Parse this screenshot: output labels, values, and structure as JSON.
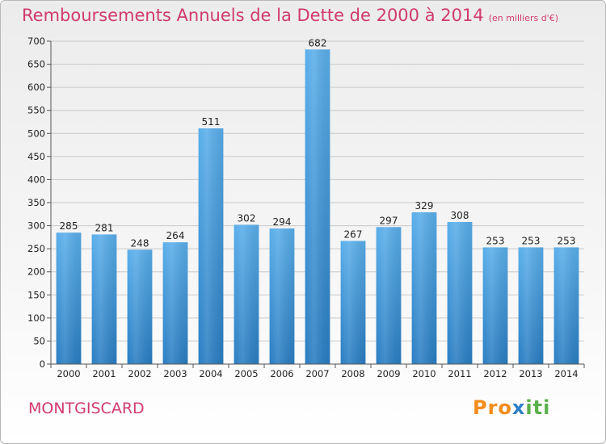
{
  "title": "Remboursements Annuels de la Dette de 2000 à 2014",
  "unit": "(en milliers d'€)",
  "commune": "MONTGISCARD",
  "logo": {
    "p1": "Pro",
    "p2": "x",
    "p3": "iti"
  },
  "colors": {
    "bar_top": "#5aaeea",
    "bar_bottom": "#2a7dc2",
    "title": "#d03a6e",
    "grid": "#c9c9c9"
  },
  "chart_data": {
    "type": "bar",
    "title": "Remboursements Annuels de la Dette de 2000 à 2014",
    "xlabel": "",
    "ylabel": "",
    "categories": [
      "2000",
      "2001",
      "2002",
      "2003",
      "2004",
      "2005",
      "2006",
      "2007",
      "2008",
      "2009",
      "2010",
      "2011",
      "2012",
      "2013",
      "2014"
    ],
    "values": [
      285,
      281,
      248,
      264,
      511,
      302,
      294,
      682,
      267,
      297,
      329,
      308,
      253,
      253,
      253
    ],
    "ylim": [
      0,
      700
    ],
    "yticks": [
      0,
      50,
      100,
      150,
      200,
      250,
      300,
      350,
      400,
      450,
      500,
      550,
      600,
      650,
      700
    ],
    "grid": true
  }
}
